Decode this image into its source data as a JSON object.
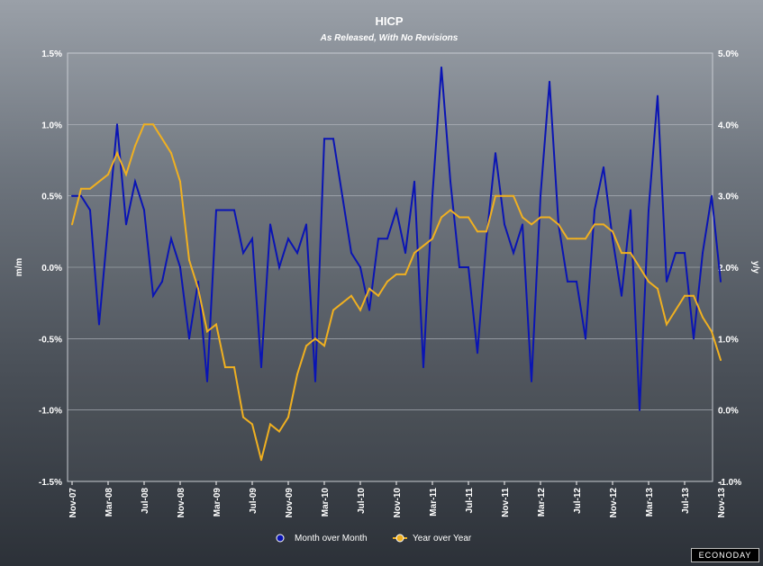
{
  "chart_data": {
    "type": "line",
    "title": "HICP",
    "subtitle": "As Released, With No Revisions",
    "ylabel_left": "m/m",
    "ylabel_right": "y/y",
    "ylim_left": [
      -1.5,
      1.5
    ],
    "ylim_right": [
      -1.0,
      5.0
    ],
    "left_ticks": [
      "1.5%",
      "1.0%",
      "0.5%",
      "0.0%",
      "-0.5%",
      "-1.0%",
      "-1.5%"
    ],
    "right_ticks": [
      "5.0%",
      "4.0%",
      "3.0%",
      "2.0%",
      "1.0%",
      "0.0%",
      "-1.0%"
    ],
    "x_tick_labels": [
      "Nov-07",
      "Mar-08",
      "Jul-08",
      "Nov-08",
      "Mar-09",
      "Jul-09",
      "Nov-09",
      "Mar-10",
      "Jul-10",
      "Nov-10",
      "Mar-11",
      "Jul-11",
      "Nov-11",
      "Mar-12",
      "Jul-12",
      "Nov-12",
      "Mar-13",
      "Jul-13",
      "Nov-13"
    ],
    "x": [
      "Nov-07",
      "Dec-07",
      "Jan-08",
      "Feb-08",
      "Mar-08",
      "Apr-08",
      "May-08",
      "Jun-08",
      "Jul-08",
      "Aug-08",
      "Sep-08",
      "Oct-08",
      "Nov-08",
      "Dec-08",
      "Jan-09",
      "Feb-09",
      "Mar-09",
      "Apr-09",
      "May-09",
      "Jun-09",
      "Jul-09",
      "Aug-09",
      "Sep-09",
      "Oct-09",
      "Nov-09",
      "Dec-09",
      "Jan-10",
      "Feb-10",
      "Mar-10",
      "Apr-10",
      "May-10",
      "Jun-10",
      "Jul-10",
      "Aug-10",
      "Sep-10",
      "Oct-10",
      "Nov-10",
      "Dec-10",
      "Jan-11",
      "Feb-11",
      "Mar-11",
      "Apr-11",
      "May-11",
      "Jun-11",
      "Jul-11",
      "Aug-11",
      "Sep-11",
      "Oct-11",
      "Nov-11",
      "Dec-11",
      "Jan-12",
      "Feb-12",
      "Mar-12",
      "Apr-12",
      "May-12",
      "Jun-12",
      "Jul-12",
      "Aug-12",
      "Sep-12",
      "Oct-12",
      "Nov-12",
      "Dec-12",
      "Jan-13",
      "Feb-13",
      "Mar-13",
      "Apr-13",
      "May-13",
      "Jun-13",
      "Jul-13",
      "Aug-13",
      "Sep-13",
      "Oct-13",
      "Nov-13"
    ],
    "series": [
      {
        "name": "Month over Month",
        "axis": "left",
        "color": "#0a14b4",
        "values": [
          0.5,
          0.5,
          0.4,
          -0.4,
          0.3,
          1.0,
          0.3,
          0.6,
          0.4,
          -0.2,
          -0.1,
          0.2,
          0.0,
          -0.5,
          -0.1,
          -0.8,
          0.4,
          0.4,
          0.4,
          0.1,
          0.2,
          -0.7,
          0.3,
          0.0,
          0.2,
          0.1,
          0.3,
          -0.8,
          0.9,
          0.9,
          0.5,
          0.1,
          0.0,
          -0.3,
          0.2,
          0.2,
          0.4,
          0.1,
          0.6,
          -0.7,
          0.5,
          1.4,
          0.6,
          0.0,
          0.0,
          -0.6,
          0.2,
          0.8,
          0.3,
          0.1,
          0.3,
          -0.8,
          0.5,
          1.3,
          0.3,
          -0.1,
          -0.1,
          -0.5,
          0.4,
          0.7,
          0.2,
          -0.2,
          0.4,
          -1.0,
          0.4,
          1.2,
          -0.1,
          0.1,
          0.1,
          -0.5,
          0.1,
          0.5,
          -0.1
        ]
      },
      {
        "name": "Year over Year",
        "axis": "right",
        "color": "#f0b020",
        "values": [
          2.6,
          3.1,
          3.1,
          3.2,
          3.3,
          3.6,
          3.3,
          3.7,
          4.0,
          4.0,
          3.8,
          3.6,
          3.2,
          2.1,
          1.7,
          1.1,
          1.2,
          0.6,
          0.6,
          -0.1,
          -0.2,
          -0.7,
          -0.2,
          -0.3,
          -0.1,
          0.5,
          0.9,
          1.0,
          0.9,
          1.4,
          1.5,
          1.6,
          1.4,
          1.7,
          1.6,
          1.8,
          1.9,
          1.9,
          2.2,
          2.3,
          2.4,
          2.7,
          2.8,
          2.7,
          2.7,
          2.5,
          2.5,
          3.0,
          3.0,
          3.0,
          2.7,
          2.6,
          2.7,
          2.7,
          2.6,
          2.4,
          2.4,
          2.4,
          2.6,
          2.6,
          2.5,
          2.2,
          2.2,
          2.0,
          1.8,
          1.7,
          1.2,
          1.4,
          1.6,
          1.6,
          1.3,
          1.1,
          0.7
        ]
      }
    ],
    "legend_position": "bottom-center",
    "grid": true
  },
  "brand": "ECONODAY"
}
